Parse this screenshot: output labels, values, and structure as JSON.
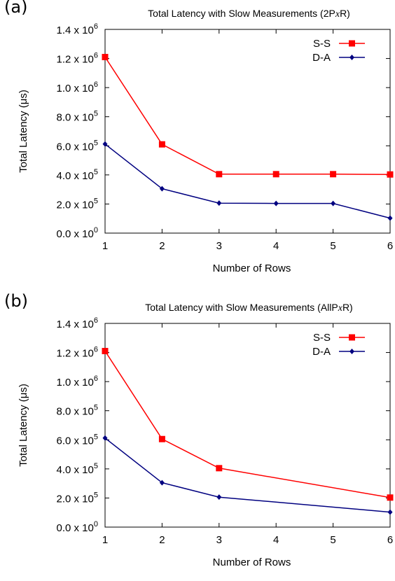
{
  "chart_data": [
    {
      "panel": "(a)",
      "type": "line",
      "title": "Total Latency with Slow Measurements (2P",
      "title_italic": "x",
      "title_tail": "R)",
      "xlabel": "Number of Rows",
      "ylabel": "Total Latency (μs)",
      "x": [
        1,
        2,
        3,
        4,
        5,
        6
      ],
      "xlim": [
        1,
        6
      ],
      "ylim": [
        0,
        1400000
      ],
      "x_ticks": [
        "1",
        "2",
        "3",
        "4",
        "5",
        "6"
      ],
      "y_ticks": [
        {
          "mantissa": "0.0 x 10",
          "exp": "0",
          "value": 0
        },
        {
          "mantissa": "2.0 x 10",
          "exp": "5",
          "value": 200000
        },
        {
          "mantissa": "4.0 x 10",
          "exp": "5",
          "value": 400000
        },
        {
          "mantissa": "6.0 x 10",
          "exp": "5",
          "value": 600000
        },
        {
          "mantissa": "8.0 x 10",
          "exp": "5",
          "value": 800000
        },
        {
          "mantissa": "1.0 x 10",
          "exp": "6",
          "value": 1000000
        },
        {
          "mantissa": "1.2 x 10",
          "exp": "6",
          "value": 1200000
        },
        {
          "mantissa": "1.4 x 10",
          "exp": "6",
          "value": 1400000
        }
      ],
      "grid": false,
      "legend_position": "top-right",
      "series": [
        {
          "name": "S-S",
          "color": "#ff0000",
          "marker": "square",
          "values": [
            1210000,
            610000,
            405000,
            405000,
            405000,
            403000
          ]
        },
        {
          "name": "D-A",
          "color": "#000080",
          "marker": "diamond",
          "values": [
            612000,
            305000,
            206000,
            204000,
            204000,
            103000
          ]
        }
      ]
    },
    {
      "panel": "(b)",
      "type": "line",
      "title": "Total Latency with Slow Measurements (AllP",
      "title_italic": "x",
      "title_tail": "R)",
      "xlabel": "Number of Rows",
      "ylabel": "Total Latency (μs)",
      "x": [
        1,
        2,
        3,
        6
      ],
      "xlim": [
        1,
        6
      ],
      "ylim": [
        0,
        1400000
      ],
      "x_ticks": [
        "1",
        "2",
        "3",
        "4",
        "5",
        "6"
      ],
      "y_ticks": [
        {
          "mantissa": "0.0 x 10",
          "exp": "0",
          "value": 0
        },
        {
          "mantissa": "2.0 x 10",
          "exp": "5",
          "value": 200000
        },
        {
          "mantissa": "4.0 x 10",
          "exp": "5",
          "value": 400000
        },
        {
          "mantissa": "6.0 x 10",
          "exp": "5",
          "value": 600000
        },
        {
          "mantissa": "8.0 x 10",
          "exp": "5",
          "value": 800000
        },
        {
          "mantissa": "1.0 x 10",
          "exp": "6",
          "value": 1000000
        },
        {
          "mantissa": "1.2 x 10",
          "exp": "6",
          "value": 1200000
        },
        {
          "mantissa": "1.4 x 10",
          "exp": "6",
          "value": 1400000
        }
      ],
      "grid": false,
      "legend_position": "top-right",
      "series": [
        {
          "name": "S-S",
          "color": "#ff0000",
          "marker": "square",
          "values": [
            1210000,
            605000,
            405000,
            203000
          ]
        },
        {
          "name": "D-A",
          "color": "#000080",
          "marker": "diamond",
          "values": [
            612000,
            305000,
            206000,
            103000
          ]
        }
      ]
    }
  ]
}
